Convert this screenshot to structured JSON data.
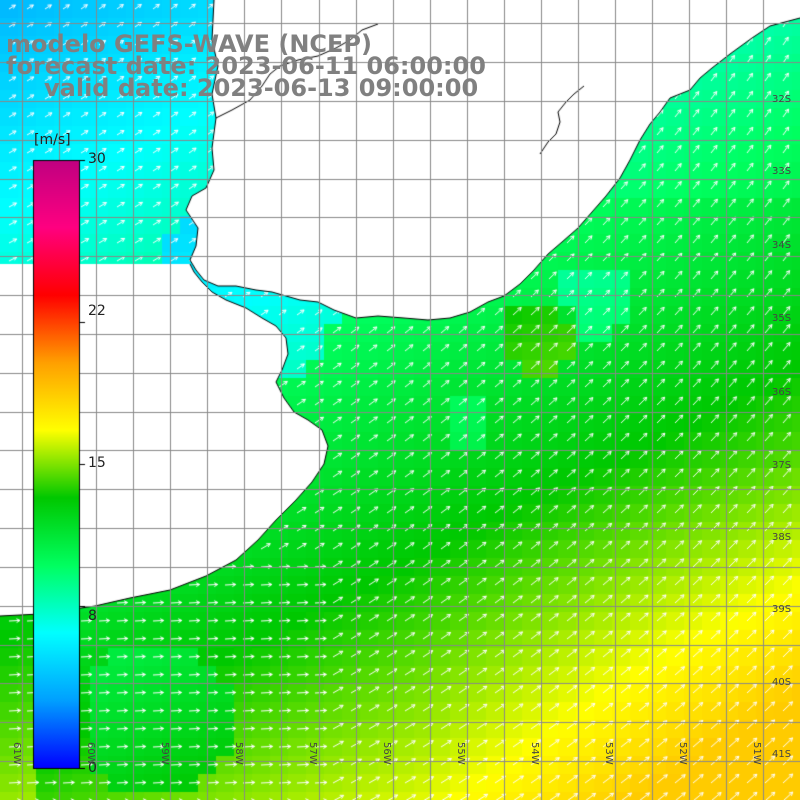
{
  "title": {
    "line1": "modelo GEFS-WAVE (NCEP)",
    "line2": "forecast date: 2023-06-11 06:00:00",
    "line3": "valid date: 2023-06-13 09:00:00"
  },
  "colorbar": {
    "unit": "[m/s]",
    "ticks": [
      "30",
      "22",
      "15",
      "8",
      "0"
    ],
    "tick_values": [
      30,
      22,
      15,
      8,
      0
    ],
    "range": [
      0,
      30
    ],
    "stops": [
      "#0000ff",
      "#00a0ff",
      "#00ffff",
      "#00ff60",
      "#00c800",
      "#ffff00",
      "#ffa000",
      "#ff0000",
      "#ff0080",
      "#c00080"
    ]
  },
  "map": {
    "lat_labels": [
      "32S",
      "33S",
      "34S",
      "35S",
      "36S",
      "37S",
      "38S",
      "39S",
      "40S",
      "41S"
    ],
    "lat_values": [
      -32,
      -33,
      -34,
      -35,
      -36,
      -37,
      -38,
      -39,
      -40,
      -41
    ],
    "lon_labels": [
      "61W",
      "60W",
      "59W",
      "58W",
      "57W",
      "56W",
      "55W",
      "54W",
      "53W",
      "52W",
      "51W"
    ],
    "lon_values": [
      -61,
      -60,
      -59,
      -58,
      -57,
      -56,
      -55,
      -54,
      -53,
      -52,
      -51
    ],
    "lat_range": [
      -41.5,
      -31.2
    ],
    "lon_range": [
      -61.3,
      -50.5
    ],
    "land_color": "#ffffff",
    "coast_color": "#000000",
    "grid_color": "#888888",
    "arrow_color": "#ffffff"
  }
}
